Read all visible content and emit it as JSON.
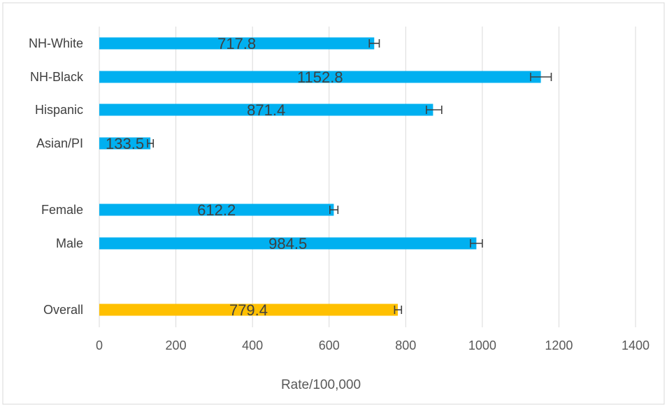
{
  "chart_data": {
    "type": "bar",
    "orientation": "horizontal",
    "title": "",
    "xlabel": "Rate/100,000",
    "ylabel": "",
    "xlim": [
      0,
      1400
    ],
    "x_ticks": [
      0,
      200,
      400,
      600,
      800,
      1000,
      1200,
      1400
    ],
    "x_tick_labels": [
      "0",
      "200",
      "400",
      "600",
      "800",
      "1000",
      "1200",
      "1400"
    ],
    "grid": "vertical",
    "legend": "none",
    "colors": {
      "bar": "#00B0F0",
      "highlight": "#FFC000",
      "error_bar": "#404040",
      "grid": "#D9D9D9"
    },
    "categories": [
      "NH-White",
      "NH-Black",
      "Hispanic",
      "Asian/PI",
      "Female",
      "Male",
      "Overall"
    ],
    "values": [
      717.8,
      1152.8,
      871.4,
      133.5,
      612.2,
      984.5,
      779.4
    ],
    "value_labels": [
      "717.8",
      "1152.8",
      "871.4",
      "133.5",
      "612.2",
      "984.5",
      "779.4"
    ],
    "error_ranges": [
      [
        705,
        731
      ],
      [
        1126,
        1180
      ],
      [
        854,
        894
      ],
      [
        126,
        141
      ],
      [
        602,
        623
      ],
      [
        969,
        1000
      ],
      [
        771,
        789
      ]
    ],
    "highlighted": [
      false,
      false,
      false,
      false,
      false,
      false,
      true
    ]
  }
}
